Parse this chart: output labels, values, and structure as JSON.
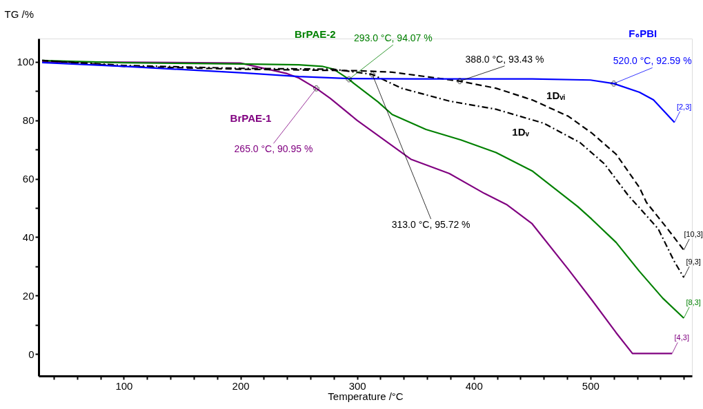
{
  "chart_data": {
    "type": "line",
    "xlabel": "Temperature /°C",
    "ylabel": "TG /%",
    "xlim": [
      27,
      587
    ],
    "ylim": [
      -7.5,
      108
    ],
    "xticks": [
      {
        "value": 40,
        "label": null
      },
      {
        "value": 60,
        "label": null
      },
      {
        "value": 80,
        "label": null
      },
      100,
      {
        "value": 120,
        "label": null
      },
      {
        "value": 140,
        "label": null
      },
      {
        "value": 160,
        "label": null
      },
      {
        "value": 180,
        "label": null
      },
      200,
      {
        "value": 220,
        "label": null
      },
      {
        "value": 240,
        "label": null
      },
      {
        "value": 260,
        "label": null
      },
      {
        "value": 280,
        "label": null
      },
      300,
      {
        "value": 320,
        "label": null
      },
      {
        "value": 340,
        "label": null
      },
      {
        "value": 360,
        "label": null
      },
      {
        "value": 380,
        "label": null
      },
      400,
      {
        "value": 420,
        "label": null
      },
      {
        "value": 440,
        "label": null
      },
      {
        "value": 460,
        "label": null
      },
      {
        "value": 480,
        "label": null
      },
      500,
      {
        "value": 520,
        "label": null
      },
      {
        "value": 540,
        "label": null
      },
      {
        "value": 560,
        "label": null
      },
      {
        "value": 580,
        "label": null
      }
    ],
    "yticks": [
      0,
      {
        "value": 10,
        "label": null
      },
      20,
      {
        "value": 30,
        "label": null
      },
      40,
      {
        "value": 50,
        "label": null
      },
      60,
      {
        "value": 70,
        "label": null
      },
      80,
      {
        "value": 90,
        "label": null
      },
      100
    ],
    "grid": false,
    "legend": false,
    "marker": "none",
    "series": [
      {
        "name": "BrPAE-1",
        "color": "#800080",
        "line_style": "solid",
        "x": [
          30,
          100,
          200,
          240,
          250,
          265,
          277,
          300,
          318,
          346,
          379,
          409,
          428,
          450,
          481,
          501,
          522,
          536,
          570
        ],
        "values": [
          100,
          99.9,
          99.6,
          96,
          94.5,
          90.95,
          87.5,
          80,
          74.8,
          66.7,
          61.8,
          55,
          51.2,
          44.6,
          29,
          18.6,
          7.3,
          0.2,
          0.2
        ]
      },
      {
        "name": "BrPAE-2",
        "color": "#008000",
        "line_style": "solid",
        "x": [
          30,
          100,
          200,
          250,
          270,
          280,
          293,
          297,
          318,
          330,
          359,
          389,
          419,
          450,
          489,
          501,
          522,
          542,
          562,
          580
        ],
        "values": [
          100.5,
          99.7,
          99.3,
          99,
          98.5,
          97.5,
          94.07,
          92.7,
          86.3,
          82,
          76.9,
          73.3,
          69,
          62.7,
          50.5,
          46.2,
          38.2,
          28.3,
          19.1,
          12.3
        ]
      },
      {
        "name": "1Dᵥ",
        "color": "#000000",
        "line_style": "dashdot",
        "x": [
          30,
          100,
          200,
          280,
          313,
          338,
          379,
          419,
          460,
          491,
          512,
          532,
          558,
          572,
          580
        ],
        "values": [
          100.5,
          98.8,
          97.8,
          97.5,
          95.72,
          91,
          86.6,
          83.8,
          79,
          72.4,
          65.1,
          54.5,
          42.9,
          31.6,
          26.2
        ]
      },
      {
        "name": "1Dᵥᵢ",
        "color": "#000000",
        "line_style": "dashed",
        "x": [
          30,
          100,
          200,
          300,
          330,
          388,
          419,
          450,
          481,
          501,
          522,
          542,
          548,
          566,
          580
        ],
        "values": [
          100.5,
          98.5,
          97.5,
          97,
          96.5,
          93.43,
          91,
          87,
          81.4,
          75.7,
          68.4,
          57,
          51.9,
          42.9,
          35.6
        ]
      },
      {
        "name": "F₆PBI",
        "color": "#0000ff",
        "line_style": "solid",
        "x": [
          30,
          100,
          200,
          250,
          293,
          350,
          400,
          450,
          500,
          520,
          542,
          554,
          572
        ],
        "values": [
          99.8,
          98.5,
          96.3,
          95,
          94.3,
          94.2,
          94.2,
          94.2,
          93.8,
          92.59,
          89.6,
          87,
          79.3
        ]
      }
    ],
    "annotations": [
      {
        "text": "265.0 °C, 90.95 %",
        "x": 265,
        "y": 90.95
      },
      {
        "text": "293.0 °C, 94.07 %",
        "x": 293,
        "y": 94.07
      },
      {
        "text": "313.0 °C, 95.72 %",
        "x": 313,
        "y": 95.72
      },
      {
        "text": "388.0 °C, 93.43 %",
        "x": 388,
        "y": 93.43
      },
      {
        "text": "520.0 °C, 92.59 %",
        "x": 520,
        "y": 92.59
      },
      {
        "text": "[2,3]",
        "x": 572,
        "y": 79.3
      },
      {
        "text": "[10,3]",
        "x": 580,
        "y": 35.6
      },
      {
        "text": "[9,3]",
        "x": 580,
        "y": 26.2
      },
      {
        "text": "[8,3]",
        "x": 580,
        "y": 12.3
      },
      {
        "text": "[4,3]",
        "x": 570,
        "y": 0.2
      }
    ]
  }
}
